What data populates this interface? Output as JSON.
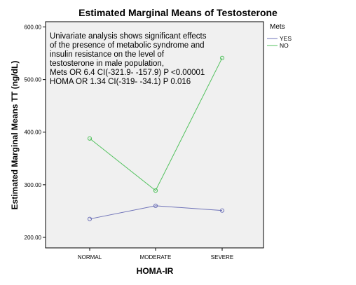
{
  "chart_data": {
    "type": "line",
    "title": "Estimated Marginal Means of Testosterone",
    "xlabel": "HOMA-IR",
    "ylabel": "Estimated Marginal Means TT (ng/dL)",
    "categories": [
      "NORMAL",
      "MODERATE",
      "SEVERE"
    ],
    "ylim": [
      180,
      610
    ],
    "yticks": [
      200,
      300,
      400,
      500,
      600
    ],
    "ytick_labels": [
      "200.00",
      "300.00",
      "400.00",
      "500.00",
      "600.00"
    ],
    "series": [
      {
        "name": "YES",
        "color": "#6f73b8",
        "values": [
          235,
          260,
          251
        ]
      },
      {
        "name": "NO",
        "color": "#52c25e",
        "values": [
          388,
          289,
          541
        ]
      }
    ],
    "legend": {
      "title": "Mets",
      "placement": "right"
    },
    "annotation": [
      "Univariate analysis shows significant effects",
      "of the presence of metabolic syndrome and",
      "insulin resistance on the level of",
      "testosterone in male population,",
      "Mets OR 6.4 CI(-321.9- -157.9) P <0.00001",
      "HOMA OR 1.34 CI(-319- -34.1) P 0.016"
    ],
    "plot_background": "#f0f0f0",
    "grid": false
  }
}
